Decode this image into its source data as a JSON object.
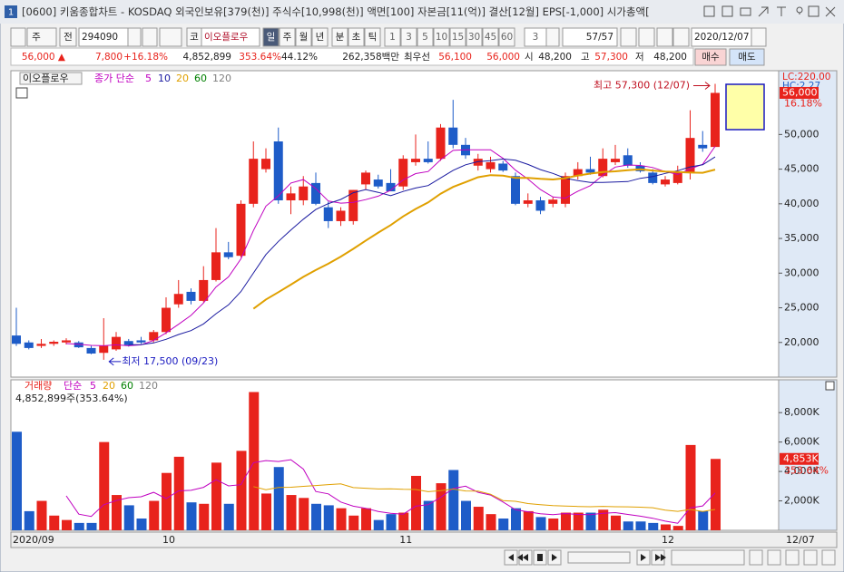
{
  "header": {
    "window_icon": "1",
    "title": "[0600] 키움종합차트 - KOSDAQ 외국인보유[379(천)] 주식수[10,998(천)] 액면[100] 자본금[11(억)] 결산[12월] EPS[-1,000] 시가총액["
  },
  "toolbar": {
    "period_type": "주",
    "prev": "전",
    "code": "294090",
    "market": "코",
    "name": "이오플로우",
    "periods": [
      "일",
      "주",
      "월",
      "년",
      "분",
      "초",
      "틱"
    ],
    "intervals": [
      "1",
      "3",
      "5",
      "10",
      "15",
      "30",
      "45",
      "60"
    ],
    "count_unit": "3",
    "count": "57/57",
    "date": "2020/12/07"
  },
  "quote": {
    "price": "56,000 ▲",
    "change": "7,800",
    "change_pct": "+16.18%",
    "volume": "4,852,899",
    "volume_ratio": "353.64%",
    "turnover": "44.12%",
    "amount": "262,358백만",
    "best_label": "최우선",
    "ask": "56,100",
    "bid": "56,000",
    "open_label": "시",
    "open": "48,200",
    "high_label": "고",
    "high": "57,300",
    "low_label": "저",
    "low": "48,200",
    "buy": "매수",
    "sell": "매도"
  },
  "chart_data": {
    "type": "candlestick",
    "legend_name": "이오플로우",
    "ma_label": "종가 단순",
    "ma_periods": [
      5,
      10,
      20,
      60,
      120
    ],
    "ma_colors": [
      "#c000c0",
      "#1a1aa0",
      "#e0a000",
      "#008000",
      "#808080"
    ],
    "up_color": "#e8231c",
    "down_color": "#1e5cc8",
    "categories": [
      "2020/09",
      null,
      null,
      null,
      null,
      null,
      null,
      null,
      null,
      null,
      null,
      null,
      "10",
      null,
      null,
      null,
      null,
      null,
      null,
      null,
      null,
      null,
      null,
      null,
      null,
      null,
      null,
      null,
      null,
      null,
      null,
      "11",
      null,
      null,
      null,
      null,
      null,
      null,
      null,
      null,
      null,
      null,
      null,
      null,
      null,
      null,
      null,
      null,
      null,
      null,
      null,
      null,
      "12",
      null,
      null,
      null,
      null
    ],
    "last_category_label": "12/07",
    "open": [
      21000,
      20000,
      19500,
      19800,
      20000,
      20000,
      19200,
      18500,
      19000,
      20200,
      20300,
      20300,
      21500,
      25500,
      27300,
      26000,
      29000,
      33000,
      32500,
      40000,
      45000,
      49000,
      40500,
      40500,
      43000,
      39500,
      37500,
      37500,
      42800,
      43500,
      43000,
      42500,
      46000,
      46500,
      46500,
      51000,
      48500,
      45500,
      45000,
      45800,
      44000,
      40000,
      40500,
      40000,
      40000,
      44000,
      45000,
      44000,
      46000,
      47000,
      45500,
      44500,
      42800,
      43000,
      44500,
      48500,
      48200
    ],
    "high": [
      25000,
      20300,
      20500,
      20300,
      20600,
      20200,
      19500,
      23500,
      21500,
      20500,
      20800,
      21800,
      26500,
      29000,
      27800,
      31000,
      36500,
      34500,
      40500,
      49000,
      48000,
      51000,
      42500,
      44000,
      44500,
      40300,
      39500,
      42000,
      44800,
      44200,
      45000,
      47000,
      50000,
      49000,
      51500,
      55000,
      49500,
      47200,
      46800,
      46200,
      44500,
      41500,
      41000,
      41000,
      44500,
      46000,
      46800,
      48000,
      48500,
      48000,
      46000,
      45000,
      44000,
      45500,
      53500,
      50500,
      57300
    ],
    "low": [
      19500,
      19000,
      19200,
      19500,
      19700,
      19200,
      18300,
      17500,
      18800,
      19400,
      19800,
      20000,
      21200,
      25000,
      25500,
      25800,
      28800,
      32000,
      32300,
      39500,
      44500,
      40000,
      38500,
      39800,
      39800,
      36500,
      36800,
      37000,
      42000,
      42200,
      41800,
      42000,
      45500,
      45800,
      46200,
      48000,
      46500,
      44800,
      44500,
      44600,
      39800,
      39500,
      38500,
      39500,
      39500,
      43500,
      44200,
      43800,
      45600,
      45200,
      44500,
      42800,
      42500,
      42800,
      43500,
      47500,
      48200
    ],
    "close": [
      19800,
      19200,
      19800,
      20100,
      20300,
      19300,
      18400,
      19500,
      20800,
      19600,
      20000,
      21500,
      25000,
      27000,
      26000,
      29000,
      33000,
      32300,
      40000,
      46500,
      46500,
      40500,
      41500,
      42500,
      40000,
      37500,
      39000,
      42000,
      44500,
      42500,
      41800,
      46500,
      46500,
      46000,
      51000,
      48500,
      47000,
      46500,
      46000,
      44800,
      40000,
      40500,
      39000,
      40600,
      44000,
      45000,
      44500,
      46500,
      46500,
      45500,
      44700,
      43000,
      43500,
      44500,
      49500,
      48000,
      56000
    ],
    "ylim": [
      15000,
      59200
    ],
    "yticks": [
      {
        "value": 20000,
        "label": "20,000"
      },
      {
        "value": 25000,
        "label": "25,000"
      },
      {
        "value": 30000,
        "label": "30,000"
      },
      {
        "value": 35000,
        "label": "35,000"
      },
      {
        "value": 40000,
        "label": "40,000"
      },
      {
        "value": 45000,
        "label": "45,000"
      },
      {
        "value": 50000,
        "label": "50,000"
      }
    ],
    "scale_labels": [
      "LC:220.00",
      "HC:2.27"
    ],
    "last_price": {
      "value": 56000,
      "label": "56,000"
    },
    "last_change_label": "16.18%",
    "max_annotation": "최고 57,300 (12/07)",
    "min_annotation": "최저 17,500 (09/23)",
    "volume": {
      "label": "거래량",
      "ma_label": "단순",
      "ma_periods": [
        5,
        20,
        60,
        120
      ],
      "ma_colors": [
        "#c000c0",
        "#e0a000",
        "#008000",
        "#808080"
      ],
      "value_label": "4,852,899주(353.64%)",
      "values": [
        6700,
        1300,
        2000,
        1000,
        700,
        500,
        500,
        6000,
        2400,
        1700,
        800,
        2000,
        3900,
        5000,
        1900,
        1800,
        4600,
        1800,
        5400,
        9400,
        2500,
        4300,
        2400,
        2200,
        1800,
        1700,
        1500,
        1000,
        1500,
        700,
        1100,
        1200,
        3700,
        2000,
        3200,
        4100,
        2000,
        1600,
        1100,
        800,
        1500,
        1300,
        900,
        800,
        1200,
        1200,
        1200,
        1400,
        1000,
        600,
        600,
        500,
        400,
        300,
        5800,
        1300,
        4852.899
      ],
      "ylim": [
        0,
        10230
      ],
      "yticks": [
        {
          "value": 2000,
          "label": "2,000K"
        },
        {
          "value": 4000,
          "label": "4,000K"
        },
        {
          "value": 6000,
          "label": "6,000K"
        },
        {
          "value": 8000,
          "label": "8,000K"
        }
      ],
      "last": {
        "value": 4852.899,
        "label": "4,853K"
      },
      "last_pct": "353.64%"
    }
  }
}
